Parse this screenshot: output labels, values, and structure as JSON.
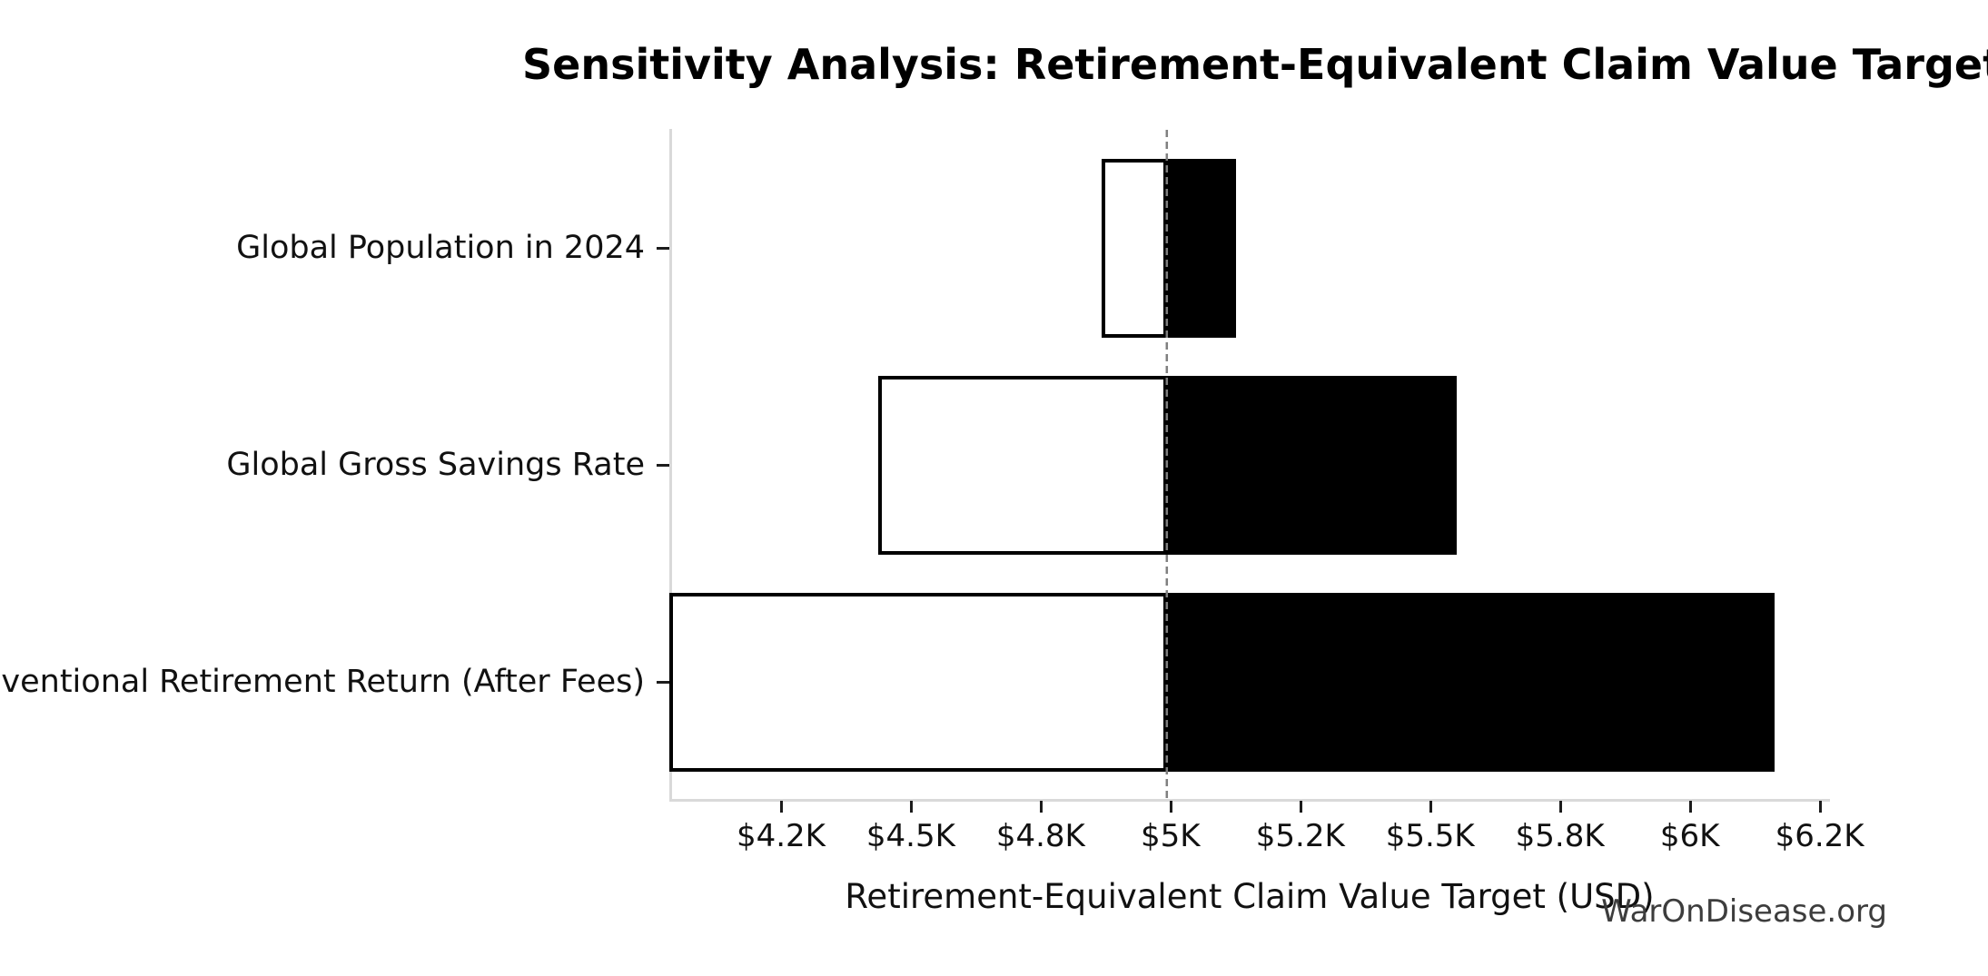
{
  "title": "Sensitivity Analysis: Retirement-Equivalent Claim Value Target",
  "watermark": "WarOnDisease.org",
  "chart_data": {
    "type": "bar",
    "subtype": "tornado-sensitivity",
    "orientation": "horizontal",
    "title": "Sensitivity Analysis: Retirement-Equivalent Claim Value Target",
    "xlabel": "Retirement-Equivalent Claim Value Target (USD)",
    "ylabel": "",
    "categories": [
      "Global Population in 2024",
      "Global Gross Savings Rate",
      "Conventional Retirement Return (After Fees)"
    ],
    "base_value": 4993,
    "bars": [
      {
        "category": "Global Population in 2024",
        "low": 4867,
        "high": 5126
      },
      {
        "category": "Global Gross Savings Rate",
        "low": 4437,
        "high": 5552
      },
      {
        "category": "Conventional Retirement Return (After Fees)",
        "low": 4035,
        "high": 6164
      }
    ],
    "series": [
      {
        "name": "low-side (white, outlined)",
        "values": [
          4867,
          4437,
          4035
        ]
      },
      {
        "name": "high-side (black, filled)",
        "values": [
          5126,
          5552,
          6164
        ]
      }
    ],
    "xlim": [
      4035,
      6270
    ],
    "xticks": [
      {
        "value": 4250,
        "label": "$4.2K"
      },
      {
        "value": 4500,
        "label": "$4.5K"
      },
      {
        "value": 4750,
        "label": "$4.8K"
      },
      {
        "value": 5000,
        "label": "$5K"
      },
      {
        "value": 5250,
        "label": "$5.2K"
      },
      {
        "value": 5500,
        "label": "$5.5K"
      },
      {
        "value": 5750,
        "label": "$5.8K"
      },
      {
        "value": 6000,
        "label": "$6K"
      },
      {
        "value": 6250,
        "label": "$6.2K"
      }
    ],
    "baseline": {
      "value": 4993,
      "style": "dashed",
      "color": "#7f7f7f"
    },
    "grid": false,
    "legend": null,
    "colors": {
      "low_fill": "#ffffff",
      "high_fill": "#000000",
      "bar_edge": "#000000",
      "spine": "#d9d9d9",
      "tick": "#1c1c1c",
      "baseline": "#7f7f7f",
      "watermark_text": "#3d3d3d"
    }
  }
}
